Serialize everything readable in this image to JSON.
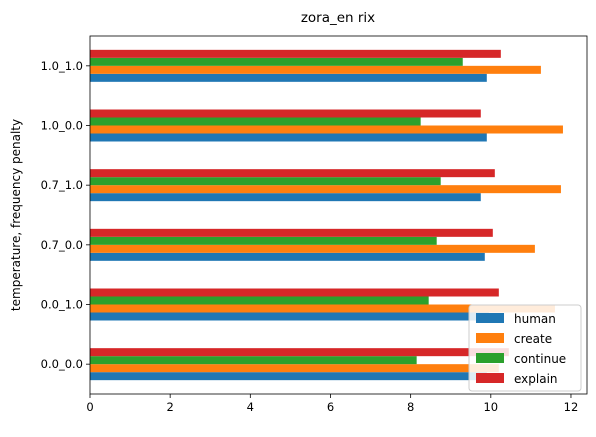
{
  "chart_data": {
    "type": "bar",
    "orientation": "horizontal",
    "title": "zora_en rix",
    "xlabel": "",
    "ylabel": "temperature, frequency penalty",
    "categories": [
      "0.0_0.0",
      "0.0_1.0",
      "0.7_0.0",
      "0.7_1.0",
      "1.0_0.0",
      "1.0_1.0"
    ],
    "xlim": [
      0,
      12.4
    ],
    "xticks": [
      0,
      2,
      4,
      6,
      8,
      10,
      12
    ],
    "grid": false,
    "legend_position": "lower-right",
    "series": [
      {
        "name": "human",
        "color": "#1f77b4",
        "values": [
          9.9,
          9.95,
          9.85,
          9.75,
          9.9,
          9.9
        ]
      },
      {
        "name": "create",
        "color": "#ff7f0e",
        "values": [
          10.2,
          11.6,
          11.1,
          11.75,
          11.8,
          11.25
        ]
      },
      {
        "name": "continue",
        "color": "#2ca02c",
        "values": [
          8.15,
          8.45,
          8.65,
          8.75,
          8.25,
          9.3
        ]
      },
      {
        "name": "explain",
        "color": "#d62728",
        "values": [
          10.45,
          10.2,
          10.05,
          10.1,
          9.75,
          10.25
        ]
      }
    ]
  }
}
